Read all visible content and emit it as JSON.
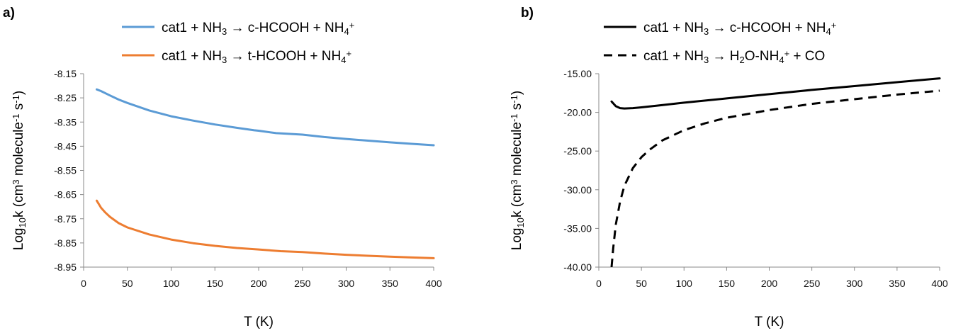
{
  "chart_data": [
    {
      "type": "line",
      "panel_label": "a)",
      "xlabel": "T (K)",
      "ylabel": {
        "base": "Log",
        "sub": "10",
        "mid": "k (cm",
        "sup1": "3",
        "mid2": " molecule",
        "sup2": "-1",
        "mid3": " s",
        "sup3": "-1",
        "end": ")"
      },
      "xlim": [
        0,
        400
      ],
      "ylim": [
        -8.95,
        -8.15
      ],
      "xticks": [
        "0",
        "50",
        "100",
        "150",
        "200",
        "250",
        "300",
        "350",
        "400"
      ],
      "yticks": [
        "-8.15",
        "-8.25",
        "-8.35",
        "-8.45",
        "-8.55",
        "-8.65",
        "-8.75",
        "-8.85",
        "-8.95"
      ],
      "legend_placement": "top",
      "series": [
        {
          "legend": {
            "pre": "cat1 + NH",
            "sub": "3",
            "mid": " → c-HCOOH + NH",
            "sub2": "4",
            "sup2": "+"
          },
          "color": "#5B9BD5",
          "style": "solid",
          "x": [
            15,
            20,
            30,
            40,
            50,
            75,
            100,
            125,
            150,
            175,
            195,
            200,
            220,
            250,
            275,
            300,
            325,
            350,
            375,
            400
          ],
          "y": [
            -8.215,
            -8.222,
            -8.24,
            -8.257,
            -8.271,
            -8.302,
            -8.326,
            -8.344,
            -8.36,
            -8.374,
            -8.384,
            -8.386,
            -8.396,
            -8.402,
            -8.412,
            -8.42,
            -8.427,
            -8.434,
            -8.44,
            -8.446
          ]
        },
        {
          "legend": {
            "pre": "cat1 + NH",
            "sub": "3",
            "mid": " → t-HCOOH + NH",
            "sub2": "4",
            "sup2": "+"
          },
          "color": "#ED7D31",
          "style": "solid",
          "x": [
            15,
            20,
            25,
            30,
            40,
            50,
            75,
            100,
            125,
            150,
            175,
            200,
            225,
            250,
            275,
            300,
            325,
            350,
            375,
            400
          ],
          "y": [
            -8.675,
            -8.705,
            -8.725,
            -8.742,
            -8.768,
            -8.786,
            -8.815,
            -8.836,
            -8.851,
            -8.862,
            -8.871,
            -8.877,
            -8.884,
            -8.888,
            -8.894,
            -8.899,
            -8.903,
            -8.907,
            -8.91,
            -8.913
          ]
        }
      ]
    },
    {
      "type": "line",
      "panel_label": "b)",
      "xlabel": "T (K)",
      "ylabel": {
        "base": "Log",
        "sub": "10",
        "mid": "k (cm",
        "sup1": "3",
        "mid2": " molecule",
        "sup2": "-1",
        "mid3": " s",
        "sup3": "-1",
        "end": ")"
      },
      "xlim": [
        0,
        400
      ],
      "ylim": [
        -40,
        -15
      ],
      "xticks": [
        "0",
        "50",
        "100",
        "150",
        "200",
        "250",
        "300",
        "350",
        "400"
      ],
      "yticks": [
        "-15.00",
        "-20.00",
        "-25.00",
        "-30.00",
        "-35.00",
        "-40.00"
      ],
      "legend_placement": "top",
      "series": [
        {
          "legend": {
            "pre": "cat1 + NH",
            "sub": "3",
            "mid": " → c-HCOOH + NH",
            "sub2": "4",
            "sup2": "+"
          },
          "color": "#000000",
          "style": "solid",
          "x": [
            15,
            20,
            25,
            30,
            40,
            50,
            75,
            100,
            150,
            200,
            250,
            300,
            350,
            400
          ],
          "y": [
            -18.6,
            -19.2,
            -19.45,
            -19.5,
            -19.45,
            -19.35,
            -19.05,
            -18.75,
            -18.2,
            -17.65,
            -17.1,
            -16.6,
            -16.1,
            -15.6
          ]
        },
        {
          "legend": {
            "pre": "cat1 + NH",
            "sub": "3",
            "mid": " → H",
            "sub2": "2",
            "mid2": "O-NH",
            "sub3": "4",
            "sup3": "+",
            "end": " + CO"
          },
          "color": "#000000",
          "style": "dashed",
          "x": [
            15,
            17,
            20,
            25,
            30,
            40,
            50,
            60,
            75,
            100,
            125,
            150,
            175,
            200,
            250,
            300,
            350,
            400
          ],
          "y": [
            -40,
            -37.5,
            -34.5,
            -31.5,
            -29.5,
            -27.2,
            -25.8,
            -24.8,
            -23.6,
            -22.3,
            -21.4,
            -20.7,
            -20.2,
            -19.7,
            -18.9,
            -18.3,
            -17.7,
            -17.2
          ]
        }
      ]
    }
  ]
}
